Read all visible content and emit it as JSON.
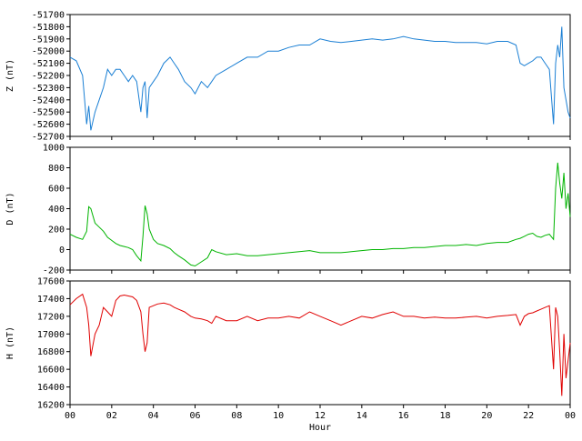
{
  "chart_data": [
    {
      "type": "line",
      "ylabel": "Z (nT)",
      "ylim": [
        -52700,
        -51700
      ],
      "yticks": [
        -51700,
        -51800,
        -51900,
        -52000,
        -52100,
        -52200,
        -52300,
        -52400,
        -52500,
        -52600,
        -52700
      ],
      "color": "#1a7fd4",
      "x": [
        0,
        0.3,
        0.6,
        0.8,
        0.9,
        1.0,
        1.2,
        1.4,
        1.6,
        1.8,
        2.0,
        2.2,
        2.4,
        2.6,
        2.8,
        3.0,
        3.2,
        3.4,
        3.5,
        3.6,
        3.7,
        3.8,
        4.0,
        4.2,
        4.5,
        4.8,
        5.0,
        5.2,
        5.5,
        5.8,
        6.0,
        6.3,
        6.6,
        6.8,
        7.0,
        7.5,
        8.0,
        8.5,
        9.0,
        9.5,
        10.0,
        10.5,
        11.0,
        11.5,
        12.0,
        12.5,
        13.0,
        13.5,
        14.0,
        14.5,
        15.0,
        15.5,
        16.0,
        16.5,
        17.0,
        17.5,
        18.0,
        18.5,
        19.0,
        19.5,
        20.0,
        20.5,
        21.0,
        21.4,
        21.6,
        21.8,
        22.0,
        22.2,
        22.4,
        22.6,
        22.8,
        23.0,
        23.2,
        23.3,
        23.4,
        23.5,
        23.6,
        23.7,
        23.8,
        23.9,
        24.0
      ],
      "values": [
        -52050,
        -52080,
        -52200,
        -52600,
        -52450,
        -52650,
        -52500,
        -52400,
        -52300,
        -52150,
        -52200,
        -52150,
        -52150,
        -52200,
        -52250,
        -52200,
        -52250,
        -52500,
        -52300,
        -52250,
        -52550,
        -52300,
        -52250,
        -52200,
        -52100,
        -52050,
        -52100,
        -52150,
        -52250,
        -52300,
        -52350,
        -52250,
        -52300,
        -52250,
        -52200,
        -52150,
        -52100,
        -52050,
        -52050,
        -52000,
        -52000,
        -51970,
        -51950,
        -51950,
        -51900,
        -51920,
        -51930,
        -51920,
        -51910,
        -51900,
        -51910,
        -51900,
        -51880,
        -51900,
        -51910,
        -51920,
        -51920,
        -51930,
        -51930,
        -51930,
        -51940,
        -51920,
        -51920,
        -51950,
        -52100,
        -52120,
        -52100,
        -52080,
        -52050,
        -52050,
        -52100,
        -52150,
        -52600,
        -52100,
        -51950,
        -52050,
        -51800,
        -52300,
        -52400,
        -52500,
        -52550
      ]
    },
    {
      "type": "line",
      "ylabel": "D (nT)",
      "ylim": [
        -200,
        1000
      ],
      "yticks": [
        -200,
        0,
        200,
        400,
        600,
        800,
        1000
      ],
      "color": "#00b400",
      "x": [
        0,
        0.3,
        0.6,
        0.8,
        0.9,
        1.0,
        1.2,
        1.4,
        1.6,
        1.8,
        2.0,
        2.2,
        2.4,
        2.6,
        2.8,
        3.0,
        3.2,
        3.4,
        3.5,
        3.6,
        3.7,
        3.8,
        4.0,
        4.2,
        4.5,
        4.8,
        5.0,
        5.2,
        5.5,
        5.8,
        6.0,
        6.3,
        6.6,
        6.8,
        7.0,
        7.5,
        8.0,
        8.5,
        9.0,
        9.5,
        10.0,
        10.5,
        11.0,
        11.5,
        12.0,
        12.5,
        13.0,
        13.5,
        14.0,
        14.5,
        15.0,
        15.5,
        16.0,
        16.5,
        17.0,
        17.5,
        18.0,
        18.5,
        19.0,
        19.5,
        20.0,
        20.5,
        21.0,
        21.4,
        21.6,
        21.8,
        22.0,
        22.2,
        22.4,
        22.6,
        22.8,
        23.0,
        23.2,
        23.3,
        23.4,
        23.5,
        23.6,
        23.7,
        23.8,
        23.9,
        24.0
      ],
      "values": [
        150,
        120,
        100,
        180,
        420,
        400,
        260,
        220,
        180,
        120,
        90,
        60,
        40,
        30,
        20,
        0,
        -60,
        -110,
        130,
        430,
        350,
        200,
        100,
        60,
        40,
        10,
        -30,
        -60,
        -100,
        -150,
        -160,
        -120,
        -80,
        0,
        -20,
        -50,
        -40,
        -60,
        -60,
        -50,
        -40,
        -30,
        -20,
        -10,
        -30,
        -30,
        -30,
        -20,
        -10,
        0,
        0,
        10,
        10,
        20,
        20,
        30,
        40,
        40,
        50,
        40,
        60,
        70,
        70,
        100,
        110,
        130,
        150,
        160,
        130,
        120,
        140,
        150,
        100,
        600,
        850,
        650,
        500,
        750,
        400,
        550,
        320
      ]
    },
    {
      "type": "line",
      "ylabel": "H (nT)",
      "ylim": [
        16200,
        17600
      ],
      "yticks": [
        16200,
        16400,
        16600,
        16800,
        17000,
        17200,
        17400,
        17600
      ],
      "xlabel": "Hour",
      "xlim": [
        0,
        24
      ],
      "xtick_labels": [
        "00",
        "02",
        "04",
        "06",
        "08",
        "10",
        "12",
        "14",
        "16",
        "18",
        "20",
        "22",
        "00"
      ],
      "color": "#e00000",
      "x": [
        0,
        0.3,
        0.6,
        0.8,
        0.9,
        1.0,
        1.2,
        1.4,
        1.6,
        1.8,
        2.0,
        2.2,
        2.4,
        2.6,
        2.8,
        3.0,
        3.2,
        3.4,
        3.5,
        3.6,
        3.7,
        3.8,
        4.0,
        4.2,
        4.5,
        4.8,
        5.0,
        5.2,
        5.5,
        5.8,
        6.0,
        6.3,
        6.6,
        6.8,
        7.0,
        7.5,
        8.0,
        8.5,
        9.0,
        9.5,
        10.0,
        10.5,
        11.0,
        11.5,
        12.0,
        12.5,
        13.0,
        13.5,
        14.0,
        14.5,
        15.0,
        15.5,
        16.0,
        16.5,
        17.0,
        17.5,
        18.0,
        18.5,
        19.0,
        19.5,
        20.0,
        20.5,
        21.0,
        21.4,
        21.6,
        21.8,
        22.0,
        22.2,
        22.4,
        22.6,
        22.8,
        23.0,
        23.2,
        23.3,
        23.4,
        23.5,
        23.6,
        23.7,
        23.8,
        23.9,
        24.0
      ],
      "values": [
        17330,
        17400,
        17450,
        17300,
        17100,
        16750,
        17000,
        17100,
        17300,
        17250,
        17200,
        17380,
        17430,
        17440,
        17430,
        17420,
        17380,
        17250,
        17000,
        16800,
        16900,
        17300,
        17320,
        17340,
        17350,
        17330,
        17300,
        17280,
        17250,
        17200,
        17180,
        17170,
        17150,
        17120,
        17200,
        17150,
        17150,
        17200,
        17150,
        17180,
        17180,
        17200,
        17180,
        17250,
        17200,
        17150,
        17100,
        17150,
        17200,
        17180,
        17220,
        17250,
        17200,
        17200,
        17180,
        17190,
        17180,
        17180,
        17190,
        17200,
        17180,
        17200,
        17210,
        17220,
        17100,
        17200,
        17230,
        17240,
        17260,
        17280,
        17300,
        17320,
        16600,
        17300,
        17200,
        16800,
        16300,
        17000,
        16500,
        16700,
        16900
      ]
    }
  ]
}
